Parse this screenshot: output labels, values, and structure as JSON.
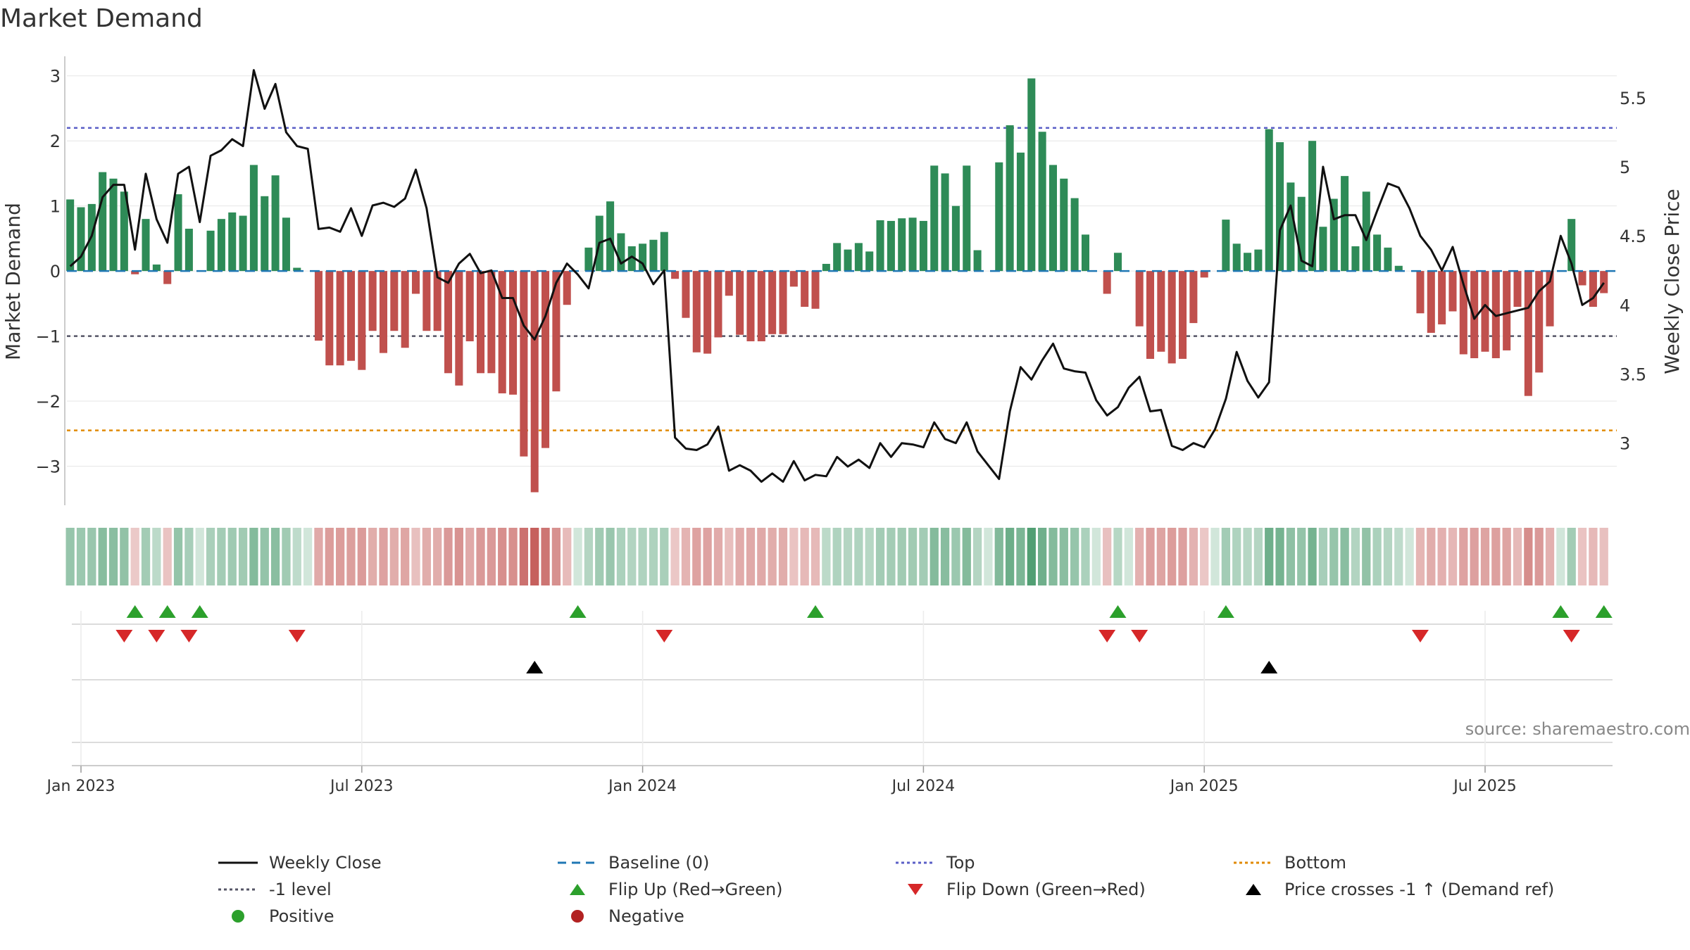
{
  "chart_data": {
    "type": "bar+line",
    "title": "Market Demand",
    "ylabel_left": "Market Demand",
    "ylabel_right": "Weekly Close Price",
    "ylim_left": [
      -3.6,
      3.3
    ],
    "ylim_right": [
      2.55,
      5.8
    ],
    "yticks_left": [
      3,
      2,
      1,
      0,
      -1,
      -2,
      -3
    ],
    "yticks_left_labels": [
      "3",
      "2",
      "1",
      "0",
      "−1",
      "−2",
      "−3"
    ],
    "yticks_right": [
      5.5,
      5,
      4.5,
      4,
      3.5,
      3
    ],
    "yticks_right_labels": [
      "5.5",
      "5",
      "4.5",
      "4",
      "3.5",
      "3"
    ],
    "x_tick_weeks": [
      0,
      26,
      52,
      78,
      104,
      130
    ],
    "x_tick_labels": [
      "Jan 2023",
      "Jul 2023",
      "Jan 2024",
      "Jul 2024",
      "Jan 2025",
      "Jul 2025"
    ],
    "start_week": -1,
    "reference_lines": {
      "top": 2.2,
      "minus_one": -1,
      "bottom": -2.45,
      "baseline": 0
    },
    "demand": [
      1.1,
      0.98,
      1.03,
      1.52,
      1.42,
      1.22,
      -0.05,
      0.8,
      0.1,
      -0.2,
      1.18,
      0.65,
      0.0,
      0.62,
      0.8,
      0.9,
      0.85,
      1.63,
      1.15,
      1.47,
      0.82,
      0.05,
      0.0,
      -1.07,
      -1.45,
      -1.45,
      -1.38,
      -1.52,
      -0.92,
      -1.26,
      -0.92,
      -1.18,
      -0.35,
      -0.92,
      -0.92,
      -1.57,
      -1.76,
      -1.08,
      -1.57,
      -1.57,
      -1.88,
      -1.9,
      -2.85,
      -3.4,
      -2.72,
      -1.85,
      -0.52,
      0.0,
      0.36,
      0.85,
      1.07,
      0.58,
      0.38,
      0.42,
      0.48,
      0.6,
      -0.12,
      -0.72,
      -1.25,
      -1.27,
      -1.02,
      -0.38,
      -0.98,
      -1.08,
      -1.08,
      -0.97,
      -0.97,
      -0.24,
      -0.55,
      -0.58,
      0.11,
      0.43,
      0.33,
      0.43,
      0.3,
      0.78,
      0.77,
      0.81,
      0.82,
      0.77,
      1.62,
      1.5,
      1.0,
      1.62,
      0.32,
      0.0,
      1.67,
      2.24,
      1.82,
      2.96,
      2.14,
      1.63,
      1.42,
      1.12,
      0.56,
      0.0,
      -0.35,
      0.28,
      0.0,
      -0.85,
      -1.35,
      -1.24,
      -1.42,
      -1.35,
      -0.8,
      -0.1,
      0.0,
      0.79,
      0.42,
      0.28,
      0.33,
      2.18,
      1.98,
      1.36,
      1.14,
      2.0,
      0.68,
      1.11,
      1.46,
      0.38,
      1.22,
      0.56,
      0.36,
      0.08,
      0.0,
      -0.65,
      -0.95,
      -0.82,
      -0.62,
      -1.28,
      -1.34,
      -1.24,
      -1.34,
      -1.22,
      -0.55,
      -1.92,
      -1.56,
      -0.85,
      0.0,
      0.8,
      -0.22,
      -0.55,
      -0.34
    ],
    "weekly_close": [
      4.28,
      4.35,
      4.5,
      4.78,
      4.87,
      4.87,
      4.4,
      4.95,
      4.62,
      4.45,
      4.95,
      5.0,
      4.6,
      5.08,
      5.12,
      5.2,
      5.15,
      5.7,
      5.42,
      5.6,
      5.25,
      5.15,
      5.13,
      4.55,
      4.56,
      4.53,
      4.7,
      4.5,
      4.72,
      4.74,
      4.71,
      4.77,
      4.98,
      4.7,
      4.2,
      4.16,
      4.3,
      4.37,
      4.23,
      4.25,
      4.05,
      4.05,
      3.85,
      3.75,
      3.92,
      4.16,
      4.3,
      4.22,
      4.12,
      4.45,
      4.48,
      4.3,
      4.35,
      4.3,
      4.15,
      4.25,
      3.04,
      2.96,
      2.95,
      2.99,
      3.12,
      2.8,
      2.84,
      2.8,
      2.72,
      2.78,
      2.72,
      2.87,
      2.73,
      2.77,
      2.76,
      2.9,
      2.83,
      2.88,
      2.82,
      3.0,
      2.9,
      3.0,
      2.99,
      2.97,
      3.15,
      3.03,
      3.0,
      3.15,
      2.94,
      2.84,
      2.74,
      3.23,
      3.55,
      3.46,
      3.6,
      3.72,
      3.54,
      3.52,
      3.51,
      3.31,
      3.2,
      3.26,
      3.4,
      3.48,
      3.23,
      3.24,
      2.98,
      2.95,
      3.0,
      2.97,
      3.1,
      3.32,
      3.66,
      3.45,
      3.33,
      3.44,
      4.54,
      4.72,
      4.32,
      4.28,
      5.0,
      4.62,
      4.65,
      4.65,
      4.47,
      4.68,
      4.88,
      4.85,
      4.7,
      4.5,
      4.4,
      4.25,
      4.42,
      4.15,
      3.9,
      4.0,
      3.92,
      3.94,
      3.96,
      3.98,
      4.1,
      4.17,
      4.5,
      4.3,
      4.0,
      4.05,
      4.16
    ]
  },
  "heat_strip": {
    "positive_color": "#2e8b57",
    "negative_color": "#c0504d"
  },
  "flip_up_weeks": [
    5,
    8,
    11,
    46,
    68,
    96,
    106,
    137,
    141
  ],
  "flip_down_weeks": [
    4,
    7,
    10,
    20,
    54,
    95,
    98,
    124,
    138
  ],
  "price_cross_weeks": [
    42,
    110
  ],
  "colors": {
    "positive_bar": "#2e8b57",
    "negative_bar": "#c0504d",
    "line": "#111111",
    "baseline": "#1f77b4",
    "top": "#5b5fc7",
    "minus_one": "#555566",
    "bottom": "#e08a00",
    "flip_up": "#2ca02c",
    "flip_down": "#d62728",
    "cross": "#000000",
    "positive_dot": "#2ca02c",
    "negative_dot": "#b22222"
  },
  "source_text": "source: sharemaestro.com",
  "legend": [
    {
      "key": "weekly_close",
      "label": "Weekly Close",
      "symbol": "line"
    },
    {
      "key": "baseline",
      "label": "Baseline (0)",
      "symbol": "dash"
    },
    {
      "key": "top",
      "label": "Top",
      "symbol": "dot"
    },
    {
      "key": "bottom",
      "label": "Bottom",
      "symbol": "dot"
    },
    {
      "key": "minus_one",
      "label": "-1 level",
      "symbol": "dot"
    },
    {
      "key": "flip_up",
      "label": "Flip Up (Red→Green)",
      "symbol": "tri-up"
    },
    {
      "key": "flip_down",
      "label": "Flip Down (Green→Red)",
      "symbol": "tri-down"
    },
    {
      "key": "cross",
      "label": "Price crosses -1 ↑ (Demand ref)",
      "symbol": "tri-up"
    },
    {
      "key": "positive_dot",
      "label": "Positive",
      "symbol": "circle"
    },
    {
      "key": "negative_dot",
      "label": "Negative",
      "symbol": "circle"
    }
  ]
}
